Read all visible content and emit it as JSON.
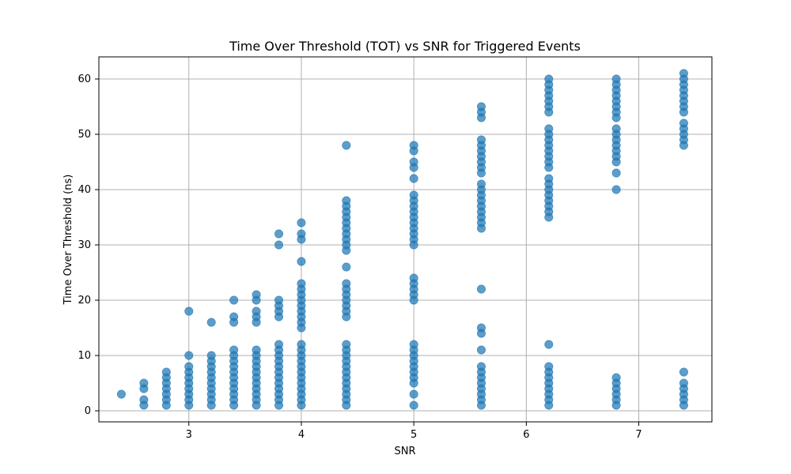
{
  "chart_data": {
    "type": "scatter",
    "title": "Time Over Threshold (TOT) vs SNR for Triggered Events",
    "xlabel": "SNR",
    "ylabel": "Time Over Threshold (ns)",
    "xlim": [
      2.2,
      7.65
    ],
    "ylim": [
      -2,
      64
    ],
    "xticks": [
      3,
      4,
      5,
      6,
      7
    ],
    "yticks": [
      0,
      10,
      20,
      30,
      40,
      50,
      60
    ],
    "grid": true,
    "colors": {
      "point": "#1f77b4"
    },
    "series": [
      {
        "points": [
          [
            2.4,
            3
          ],
          [
            2.6,
            1
          ],
          [
            2.6,
            2
          ],
          [
            2.6,
            4
          ],
          [
            2.6,
            5
          ],
          [
            2.8,
            1
          ],
          [
            2.8,
            2
          ],
          [
            2.8,
            3
          ],
          [
            2.8,
            4
          ],
          [
            2.8,
            5
          ],
          [
            2.8,
            6
          ],
          [
            2.8,
            7
          ],
          [
            3.0,
            1
          ],
          [
            3.0,
            2
          ],
          [
            3.0,
            3
          ],
          [
            3.0,
            4
          ],
          [
            3.0,
            5
          ],
          [
            3.0,
            6
          ],
          [
            3.0,
            7
          ],
          [
            3.0,
            8
          ],
          [
            3.0,
            10
          ],
          [
            3.0,
            18
          ],
          [
            3.2,
            1
          ],
          [
            3.2,
            2
          ],
          [
            3.2,
            3
          ],
          [
            3.2,
            4
          ],
          [
            3.2,
            5
          ],
          [
            3.2,
            6
          ],
          [
            3.2,
            7
          ],
          [
            3.2,
            8
          ],
          [
            3.2,
            9
          ],
          [
            3.2,
            10
          ],
          [
            3.2,
            16
          ],
          [
            3.4,
            1
          ],
          [
            3.4,
            2
          ],
          [
            3.4,
            3
          ],
          [
            3.4,
            4
          ],
          [
            3.4,
            5
          ],
          [
            3.4,
            6
          ],
          [
            3.4,
            7
          ],
          [
            3.4,
            8
          ],
          [
            3.4,
            9
          ],
          [
            3.4,
            10
          ],
          [
            3.4,
            11
          ],
          [
            3.4,
            16
          ],
          [
            3.4,
            17
          ],
          [
            3.4,
            20
          ],
          [
            3.6,
            1
          ],
          [
            3.6,
            2
          ],
          [
            3.6,
            3
          ],
          [
            3.6,
            4
          ],
          [
            3.6,
            5
          ],
          [
            3.6,
            6
          ],
          [
            3.6,
            7
          ],
          [
            3.6,
            8
          ],
          [
            3.6,
            9
          ],
          [
            3.6,
            10
          ],
          [
            3.6,
            11
          ],
          [
            3.6,
            16
          ],
          [
            3.6,
            17
          ],
          [
            3.6,
            18
          ],
          [
            3.6,
            20
          ],
          [
            3.6,
            21
          ],
          [
            3.8,
            1
          ],
          [
            3.8,
            2
          ],
          [
            3.8,
            3
          ],
          [
            3.8,
            4
          ],
          [
            3.8,
            5
          ],
          [
            3.8,
            6
          ],
          [
            3.8,
            7
          ],
          [
            3.8,
            8
          ],
          [
            3.8,
            9
          ],
          [
            3.8,
            10
          ],
          [
            3.8,
            11
          ],
          [
            3.8,
            12
          ],
          [
            3.8,
            17
          ],
          [
            3.8,
            18
          ],
          [
            3.8,
            19
          ],
          [
            3.8,
            20
          ],
          [
            3.8,
            30
          ],
          [
            3.8,
            32
          ],
          [
            4.0,
            1
          ],
          [
            4.0,
            2
          ],
          [
            4.0,
            3
          ],
          [
            4.0,
            4
          ],
          [
            4.0,
            5
          ],
          [
            4.0,
            6
          ],
          [
            4.0,
            7
          ],
          [
            4.0,
            8
          ],
          [
            4.0,
            9
          ],
          [
            4.0,
            10
          ],
          [
            4.0,
            11
          ],
          [
            4.0,
            12
          ],
          [
            4.0,
            15
          ],
          [
            4.0,
            16
          ],
          [
            4.0,
            17
          ],
          [
            4.0,
            18
          ],
          [
            4.0,
            19
          ],
          [
            4.0,
            20
          ],
          [
            4.0,
            21
          ],
          [
            4.0,
            22
          ],
          [
            4.0,
            23
          ],
          [
            4.0,
            27
          ],
          [
            4.0,
            31
          ],
          [
            4.0,
            32
          ],
          [
            4.0,
            34
          ],
          [
            4.4,
            1
          ],
          [
            4.4,
            2
          ],
          [
            4.4,
            3
          ],
          [
            4.4,
            4
          ],
          [
            4.4,
            5
          ],
          [
            4.4,
            6
          ],
          [
            4.4,
            7
          ],
          [
            4.4,
            8
          ],
          [
            4.4,
            9
          ],
          [
            4.4,
            10
          ],
          [
            4.4,
            11
          ],
          [
            4.4,
            12
          ],
          [
            4.4,
            17
          ],
          [
            4.4,
            18
          ],
          [
            4.4,
            19
          ],
          [
            4.4,
            20
          ],
          [
            4.4,
            21
          ],
          [
            4.4,
            22
          ],
          [
            4.4,
            23
          ],
          [
            4.4,
            26
          ],
          [
            4.4,
            29
          ],
          [
            4.4,
            30
          ],
          [
            4.4,
            31
          ],
          [
            4.4,
            32
          ],
          [
            4.4,
            33
          ],
          [
            4.4,
            34
          ],
          [
            4.4,
            35
          ],
          [
            4.4,
            36
          ],
          [
            4.4,
            37
          ],
          [
            4.4,
            38
          ],
          [
            4.4,
            48
          ],
          [
            5.0,
            1
          ],
          [
            5.0,
            3
          ],
          [
            5.0,
            5
          ],
          [
            5.0,
            6
          ],
          [
            5.0,
            7
          ],
          [
            5.0,
            8
          ],
          [
            5.0,
            9
          ],
          [
            5.0,
            10
          ],
          [
            5.0,
            11
          ],
          [
            5.0,
            12
          ],
          [
            5.0,
            20
          ],
          [
            5.0,
            21
          ],
          [
            5.0,
            22
          ],
          [
            5.0,
            23
          ],
          [
            5.0,
            24
          ],
          [
            5.0,
            30
          ],
          [
            5.0,
            31
          ],
          [
            5.0,
            32
          ],
          [
            5.0,
            33
          ],
          [
            5.0,
            34
          ],
          [
            5.0,
            35
          ],
          [
            5.0,
            36
          ],
          [
            5.0,
            37
          ],
          [
            5.0,
            38
          ],
          [
            5.0,
            39
          ],
          [
            5.0,
            42
          ],
          [
            5.0,
            44
          ],
          [
            5.0,
            45
          ],
          [
            5.0,
            47
          ],
          [
            5.0,
            48
          ],
          [
            5.6,
            1
          ],
          [
            5.6,
            2
          ],
          [
            5.6,
            3
          ],
          [
            5.6,
            4
          ],
          [
            5.6,
            5
          ],
          [
            5.6,
            6
          ],
          [
            5.6,
            7
          ],
          [
            5.6,
            8
          ],
          [
            5.6,
            11
          ],
          [
            5.6,
            14
          ],
          [
            5.6,
            15
          ],
          [
            5.6,
            22
          ],
          [
            5.6,
            33
          ],
          [
            5.6,
            34
          ],
          [
            5.6,
            35
          ],
          [
            5.6,
            36
          ],
          [
            5.6,
            37
          ],
          [
            5.6,
            38
          ],
          [
            5.6,
            39
          ],
          [
            5.6,
            40
          ],
          [
            5.6,
            41
          ],
          [
            5.6,
            43
          ],
          [
            5.6,
            44
          ],
          [
            5.6,
            45
          ],
          [
            5.6,
            46
          ],
          [
            5.6,
            47
          ],
          [
            5.6,
            48
          ],
          [
            5.6,
            49
          ],
          [
            5.6,
            53
          ],
          [
            5.6,
            54
          ],
          [
            5.6,
            55
          ],
          [
            6.2,
            1
          ],
          [
            6.2,
            2
          ],
          [
            6.2,
            3
          ],
          [
            6.2,
            4
          ],
          [
            6.2,
            5
          ],
          [
            6.2,
            6
          ],
          [
            6.2,
            7
          ],
          [
            6.2,
            8
          ],
          [
            6.2,
            12
          ],
          [
            6.2,
            35
          ],
          [
            6.2,
            36
          ],
          [
            6.2,
            37
          ],
          [
            6.2,
            38
          ],
          [
            6.2,
            39
          ],
          [
            6.2,
            40
          ],
          [
            6.2,
            41
          ],
          [
            6.2,
            42
          ],
          [
            6.2,
            44
          ],
          [
            6.2,
            45
          ],
          [
            6.2,
            46
          ],
          [
            6.2,
            47
          ],
          [
            6.2,
            48
          ],
          [
            6.2,
            49
          ],
          [
            6.2,
            50
          ],
          [
            6.2,
            51
          ],
          [
            6.2,
            54
          ],
          [
            6.2,
            55
          ],
          [
            6.2,
            56
          ],
          [
            6.2,
            57
          ],
          [
            6.2,
            58
          ],
          [
            6.2,
            59
          ],
          [
            6.2,
            60
          ],
          [
            6.8,
            1
          ],
          [
            6.8,
            2
          ],
          [
            6.8,
            3
          ],
          [
            6.8,
            4
          ],
          [
            6.8,
            5
          ],
          [
            6.8,
            6
          ],
          [
            6.8,
            40
          ],
          [
            6.8,
            43
          ],
          [
            6.8,
            45
          ],
          [
            6.8,
            46
          ],
          [
            6.8,
            47
          ],
          [
            6.8,
            48
          ],
          [
            6.8,
            49
          ],
          [
            6.8,
            50
          ],
          [
            6.8,
            51
          ],
          [
            6.8,
            53
          ],
          [
            6.8,
            54
          ],
          [
            6.8,
            55
          ],
          [
            6.8,
            56
          ],
          [
            6.8,
            57
          ],
          [
            6.8,
            58
          ],
          [
            6.8,
            59
          ],
          [
            6.8,
            60
          ],
          [
            7.4,
            1
          ],
          [
            7.4,
            2
          ],
          [
            7.4,
            3
          ],
          [
            7.4,
            4
          ],
          [
            7.4,
            5
          ],
          [
            7.4,
            7
          ],
          [
            7.4,
            48
          ],
          [
            7.4,
            49
          ],
          [
            7.4,
            50
          ],
          [
            7.4,
            51
          ],
          [
            7.4,
            52
          ],
          [
            7.4,
            54
          ],
          [
            7.4,
            55
          ],
          [
            7.4,
            56
          ],
          [
            7.4,
            57
          ],
          [
            7.4,
            58
          ],
          [
            7.4,
            59
          ],
          [
            7.4,
            60
          ],
          [
            7.4,
            61
          ]
        ]
      }
    ]
  }
}
